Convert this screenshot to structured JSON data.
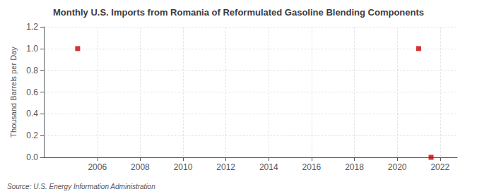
{
  "chart_data": {
    "type": "scatter",
    "title": "Monthly U.S. Imports from Romania of Reformulated Gasoline Blending Components",
    "ylabel": "Thousand Barrels per Day",
    "annotations": [
      "Source: U.S. Energy Information Administration"
    ],
    "x": [
      2005.08,
      2021.0,
      2021.58
    ],
    "values": [
      1.0,
      1.0,
      0.0
    ],
    "color": "#cc0000",
    "marker": "square",
    "xlim": [
      2003.5,
      2022.8
    ],
    "xticks": [
      2006,
      2008,
      2010,
      2012,
      2014,
      2016,
      2018,
      2020,
      2022
    ],
    "ylim": [
      0.0,
      1.2
    ],
    "yticks": [
      {
        "value": 0.0,
        "label": "0.0"
      },
      0.2,
      0.4,
      0.6,
      0.8,
      {
        "value": 1.0,
        "label": "1.0"
      },
      1.2
    ],
    "grid": true
  }
}
